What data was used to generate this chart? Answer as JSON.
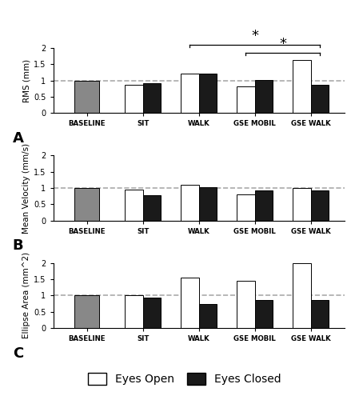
{
  "categories": [
    "BASELINE",
    "SIT",
    "WALK",
    "GSE MOBIL",
    "GSE WALK"
  ],
  "panel_A": {
    "ylabel": "RMS (mm)",
    "eyes_open": [
      1.0,
      0.87,
      1.22,
      0.83,
      1.62
    ],
    "eyes_closed": [
      1.0,
      0.93,
      1.22,
      1.02,
      0.88
    ]
  },
  "panel_B": {
    "ylabel": "Mean Velocity (mm/s)",
    "eyes_open": [
      1.0,
      0.94,
      1.1,
      0.8,
      1.0
    ],
    "eyes_closed": [
      1.0,
      0.78,
      1.02,
      0.93,
      0.93
    ]
  },
  "panel_C": {
    "ylabel": "Ellipse Area (mm^2)",
    "eyes_open": [
      1.0,
      1.0,
      1.55,
      1.45,
      2.0
    ],
    "eyes_closed": [
      1.0,
      0.93,
      0.73,
      0.87,
      0.87
    ]
  },
  "color_baseline": "#888888",
  "color_eyes_open": "#ffffff",
  "color_eyes_closed": "#1a1a1a",
  "color_edge": "#000000",
  "dashed_line_color": "#aaaaaa",
  "ylim": [
    0,
    2.0
  ],
  "yticks": [
    0,
    0.5,
    1.0,
    1.5,
    2.0
  ],
  "ytick_labels": [
    "0",
    "0.5",
    "1",
    "1.5",
    "2"
  ],
  "bar_width": 0.32,
  "panel_labels": [
    "A",
    "B",
    "C"
  ],
  "legend_labels": [
    "Eyes Open",
    "Eyes Closed"
  ]
}
